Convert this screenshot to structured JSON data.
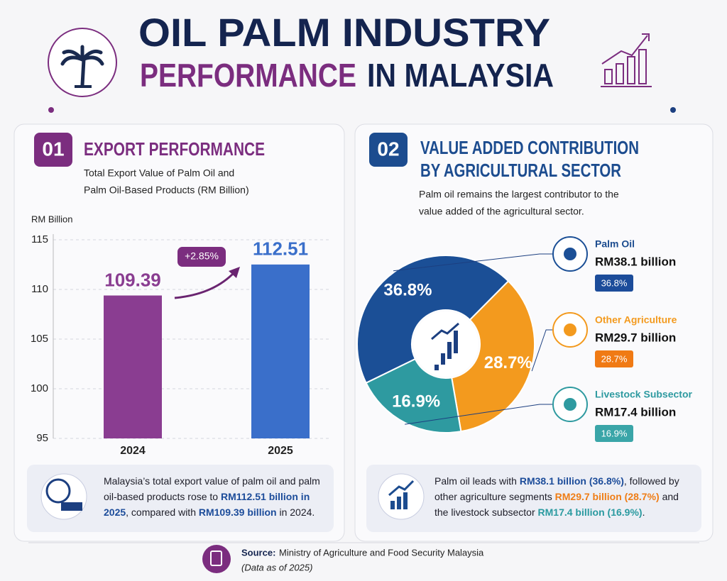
{
  "header": {
    "title_line1": "OIL PALM INDUSTRY",
    "title_line2a": "PERFORMANCE",
    "title_line2b": "IN MALAYSIA"
  },
  "chart_data": [
    {
      "type": "bar",
      "number": "01",
      "title": "EXPORT PERFORMANCE",
      "subtitle_lines": [
        "Total Export Value of Palm Oil and",
        "Palm Oil-Based Products (RM Billion)"
      ],
      "y_label": "RM Billion",
      "categories": [
        "2024",
        "2025"
      ],
      "values": [
        109.39,
        112.51
      ],
      "colors": [
        "#8a3d91",
        "#3a6fca"
      ],
      "ylim": [
        95,
        115
      ],
      "yticks": [
        95,
        100,
        105,
        110,
        115
      ],
      "grid": true,
      "annotation": "+2.85%",
      "note": [
        "Malaysia’s total export value of palm oil and palm oil-based products rose to ",
        "RM112.51 billion in 2025",
        ", compared with ",
        "RM109.39 billion",
        " in 2024."
      ]
    },
    {
      "type": "pie",
      "number": "02",
      "title_lines": [
        "VALUE ADDED CONTRIBUTION",
        "BY AGRICULTURAL SECTOR"
      ],
      "subtitle_lines": [
        "Palm oil remains the largest contributor to the",
        "value added of the agricultural sector."
      ],
      "categories": [
        "Palm Oil",
        "Other Agriculture",
        "Livestock Subsector"
      ],
      "values": [
        36.8,
        28.7,
        16.9
      ],
      "value_labels": [
        "36.8%",
        "28.7%",
        "16.9%"
      ],
      "amount_labels": [
        "RM38.1 billion",
        "RM29.7 billion",
        "RM17.4 billion"
      ],
      "colors": [
        "#1b4f96",
        "#f39a1e",
        "#2e9aa0"
      ],
      "note": [
        "Palm oil leads with ",
        "RM38.1 billion (36.8%)",
        ", followed by other agriculture segments ",
        "RM29.7 billion (28.7%)",
        " and the livestock subsector ",
        "RM17.4 billion (16.9%)",
        "."
      ]
    }
  ],
  "source": {
    "label": "Source:",
    "text": "Ministry of Agriculture and Food Security Malaysia",
    "date": "(Data as of 2025)"
  }
}
